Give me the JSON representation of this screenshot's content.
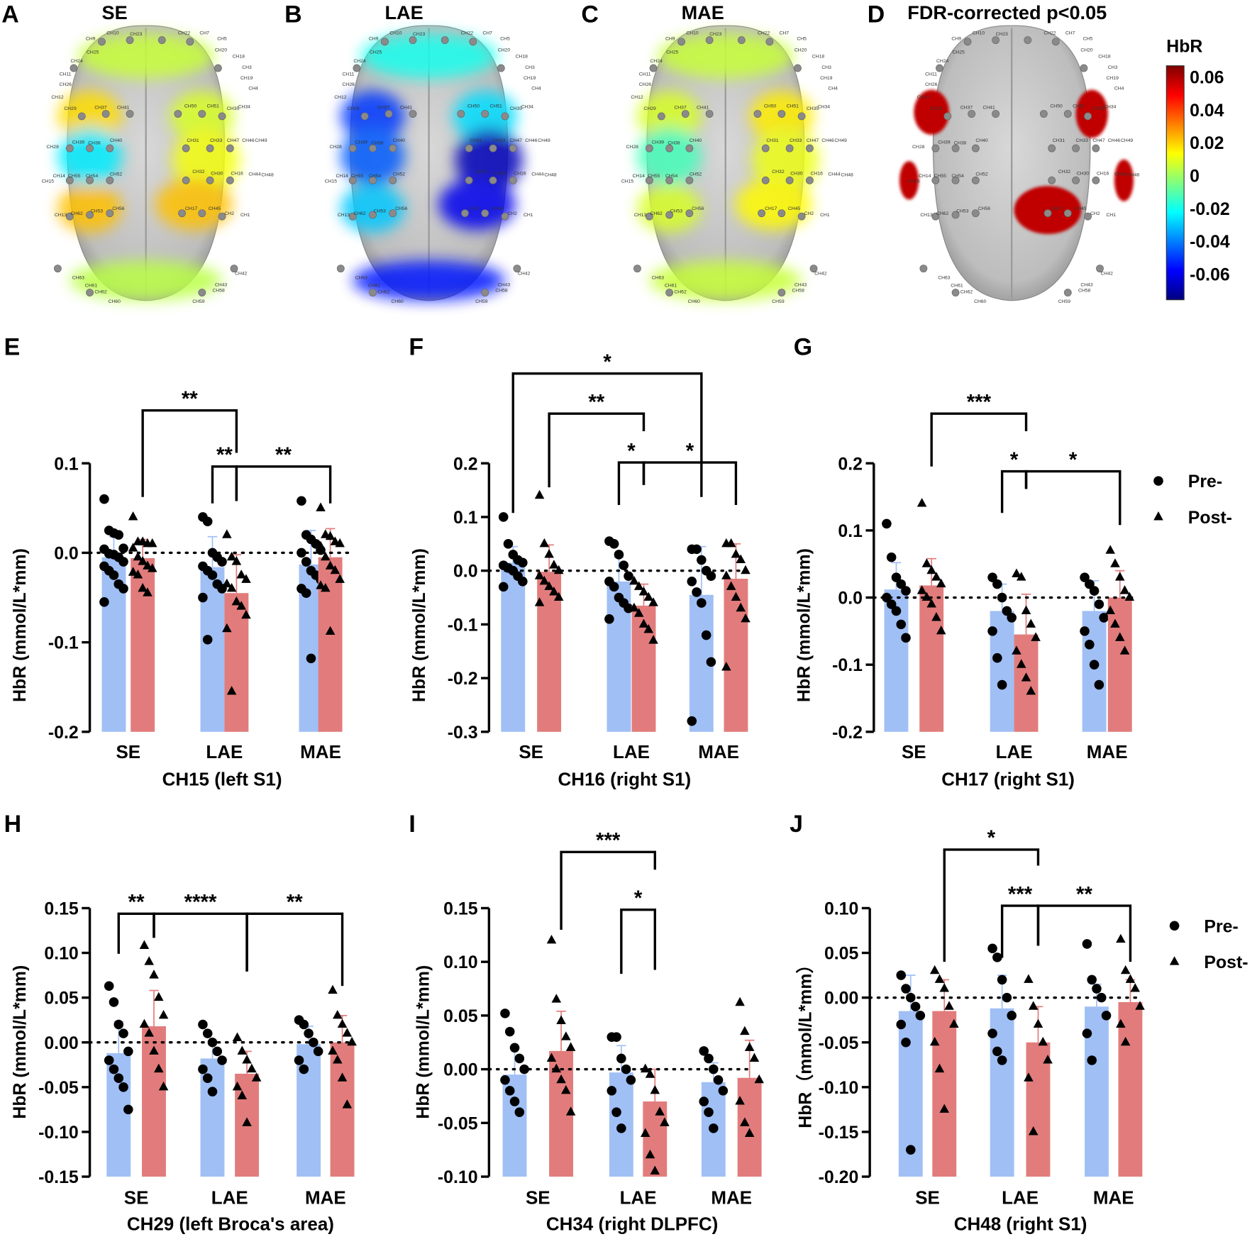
{
  "brains": [
    {
      "letter": "A",
      "title": "SE",
      "blobs": {
        "front": 0.01,
        "lf": 0.022,
        "lm": -0.02,
        "lr": 0.026,
        "rf": 0.012,
        "rm": 0.016,
        "rr": 0.026,
        "occ": 0.008
      }
    },
    {
      "letter": "B",
      "title": "LAE",
      "blobs": {
        "front": -0.015,
        "lf": -0.045,
        "lm": -0.04,
        "lr": -0.025,
        "rf": -0.022,
        "rm": -0.062,
        "rr": -0.055,
        "occ": -0.05
      }
    },
    {
      "letter": "C",
      "title": "MAE",
      "blobs": {
        "front": 0.01,
        "lf": 0.012,
        "lm": -0.008,
        "lr": 0.012,
        "rf": 0.02,
        "rm": 0.015,
        "rr": 0.018,
        "occ": 0.01
      }
    },
    {
      "letter": "D",
      "title": "FDR-corrected p<0.05",
      "significant": [
        "CH29",
        "CH35",
        "CH15",
        "CH48",
        "CH17"
      ]
    }
  ],
  "channels": [
    "CH9",
    "CH10",
    "CH23",
    "CH22",
    "CH7",
    "CH5",
    "CH20",
    "CH18",
    "CH3",
    "CH19",
    "CH4",
    "CH25",
    "CH24",
    "CH11",
    "CH26",
    "CH12",
    "CH29",
    "CH37",
    "CH41",
    "CH50",
    "CH51",
    "CH35",
    "CH34",
    "CH28",
    "CH39",
    "CH38",
    "CH40",
    "CH31",
    "CH33",
    "CH47",
    "CH46",
    "CH49",
    "CH14",
    "CH15",
    "CH55",
    "CH54",
    "CH52",
    "CH32",
    "CH30",
    "CH16",
    "CH44",
    "CH48",
    "CH13",
    "CH62",
    "CH53",
    "CH56",
    "CH17",
    "CH45",
    "CH2",
    "CH1",
    "CH63",
    "CH61",
    "CH62",
    "CH60",
    "CH59",
    "CH58",
    "CH43",
    "CH42"
  ],
  "colorbar": {
    "title": "HbR",
    "ticks": [
      "0.06",
      "0.04",
      "0.02",
      "0",
      "-0.02",
      "-0.04",
      "-0.06"
    ],
    "range": [
      -0.07,
      0.07
    ]
  },
  "legend": {
    "pre": "Pre-",
    "post": "Post-"
  },
  "colors": {
    "pre": "#a0bff5",
    "post": "#e27c7c",
    "pre_err": "#a0bff5",
    "post_err": "#e27c7c"
  },
  "chart_data": [
    {
      "type": "bar",
      "letter": "E",
      "xlabel": "CH15 (left S1)",
      "ylabel": "HbR (mmol/L*mm)",
      "ylim": [
        -0.2,
        0.1
      ],
      "ticks": [
        "0.1",
        "0.0",
        "-0.1",
        "-0.2"
      ],
      "tickvals": [
        0.1,
        0,
        -0.1,
        -0.2
      ],
      "categories": [
        "SE",
        "LAE",
        "MAE"
      ],
      "series": [
        {
          "name": "Pre-",
          "means": [
            -0.005,
            -0.016,
            -0.013
          ],
          "sd": [
            0.023,
            0.034,
            0.038
          ],
          "points": [
            [
              0.06,
              0.025,
              0.022,
              0.02,
              0.005,
              0.004,
              -0.001,
              -0.002,
              -0.005,
              -0.01,
              -0.015,
              -0.02,
              -0.025,
              -0.035,
              -0.04,
              -0.055
            ],
            [
              0.04,
              0.035,
              0,
              -0.005,
              -0.01,
              -0.015,
              -0.02,
              -0.025,
              -0.035,
              -0.04,
              -0.05,
              -0.097
            ],
            [
              0.058,
              0.02,
              0.015,
              0.01,
              0.003,
              0,
              -0.01,
              -0.02,
              -0.025,
              -0.03,
              -0.04,
              -0.045,
              -0.118
            ]
          ]
        },
        {
          "name": "Post-",
          "means": [
            -0.006,
            -0.045,
            -0.005
          ],
          "sd": [
            0.021,
            0.043,
            0.032
          ],
          "points": [
            [
              0.04,
              0.012,
              0.012,
              0.01,
              0.01,
              0.005,
              -0.005,
              -0.01,
              -0.015,
              -0.018,
              -0.022,
              -0.025,
              -0.04,
              -0.045
            ],
            [
              0.02,
              -0.005,
              -0.01,
              -0.025,
              -0.03,
              -0.035,
              -0.04,
              -0.055,
              -0.06,
              -0.07,
              -0.085,
              -0.155
            ],
            [
              0.05,
              0.02,
              0.018,
              0.012,
              0.01,
              0.007,
              -0.005,
              -0.015,
              -0.02,
              -0.03,
              -0.037,
              -0.04,
              -0.088
            ]
          ]
        }
      ],
      "comparisons": [
        {
          "a": 1,
          "b": 3,
          "label": "**"
        },
        {
          "a": 2,
          "b": 3,
          "label": "**"
        },
        {
          "a": 3,
          "b": 5,
          "label": "**"
        }
      ]
    },
    {
      "type": "bar",
      "letter": "F",
      "xlabel": "CH16 (right S1)",
      "ylabel": "HbR (mmol/L*mm)",
      "ylim": [
        -0.3,
        0.2
      ],
      "ticks": [
        "0.2",
        "0.1",
        "0.0",
        "-0.1",
        "-0.2",
        "-0.3"
      ],
      "tickvals": [
        0.2,
        0.1,
        0,
        -0.1,
        -0.2,
        -0.3
      ],
      "categories": [
        "SE",
        "LAE",
        "MAE"
      ],
      "series": [
        {
          "name": "Pre-",
          "means": [
            0.015,
            -0.02,
            -0.045
          ],
          "sd": [
            0.03,
            0.045,
            0.09
          ],
          "points": [
            [
              0.1,
              0.05,
              0.03,
              0.02,
              0.015,
              0.01,
              0.005,
              0,
              -0.01,
              -0.02,
              -0.03
            ],
            [
              0.055,
              0.05,
              0.03,
              0.01,
              -0.01,
              -0.02,
              -0.03,
              -0.05,
              -0.06,
              -0.07,
              -0.09
            ],
            [
              0.04,
              0.04,
              0.02,
              0,
              -0.01,
              -0.02,
              -0.04,
              -0.06,
              -0.12,
              -0.17,
              -0.28
            ]
          ]
        },
        {
          "name": "Post-",
          "means": [
            -0.002,
            -0.065,
            -0.015
          ],
          "sd": [
            0.05,
            0.04,
            0.065
          ],
          "points": [
            [
              0.14,
              0.05,
              0.03,
              0.01,
              0,
              -0.01,
              -0.02,
              -0.03,
              -0.04,
              -0.05,
              -0.06
            ],
            [
              -0.02,
              -0.03,
              -0.04,
              -0.05,
              -0.06,
              -0.07,
              -0.08,
              -0.1,
              -0.11,
              -0.13
            ],
            [
              0.05,
              0.05,
              0.03,
              0.02,
              0,
              -0.01,
              -0.03,
              -0.05,
              -0.07,
              -0.09,
              -0.18
            ]
          ]
        }
      ],
      "comparisons": [
        {
          "a": 0,
          "b": 4,
          "label": "*"
        },
        {
          "a": 1,
          "b": 3,
          "label": "**"
        },
        {
          "a": 2,
          "b": 3,
          "label": "*"
        },
        {
          "a": 3,
          "b": 5,
          "label": "*"
        }
      ]
    },
    {
      "type": "bar",
      "letter": "G",
      "xlabel": "CH17 (right S1)",
      "ylabel": "HbR (mmol/L*mm)",
      "ylim": [
        -0.2,
        0.2
      ],
      "ticks": [
        "0.2",
        "0.1",
        "0.0",
        "-0.1",
        "-0.2"
      ],
      "tickvals": [
        0.2,
        0.1,
        0,
        -0.1,
        -0.2
      ],
      "categories": [
        "SE",
        "LAE",
        "MAE"
      ],
      "series": [
        {
          "name": "Pre-",
          "means": [
            0.012,
            -0.02,
            -0.02
          ],
          "sd": [
            0.04,
            0.04,
            0.045
          ],
          "points": [
            [
              0.11,
              0.06,
              0.03,
              0.02,
              0.01,
              0,
              -0.01,
              -0.02,
              -0.04,
              -0.06
            ],
            [
              0.03,
              0.02,
              0,
              -0.02,
              -0.03,
              -0.05,
              -0.09,
              -0.13
            ],
            [
              0.03,
              0.02,
              0.01,
              -0.01,
              -0.03,
              -0.05,
              -0.07,
              -0.1,
              -0.13
            ]
          ]
        },
        {
          "name": "Post-",
          "means": [
            0.018,
            -0.055,
            0
          ],
          "sd": [
            0.04,
            0.06,
            0.04
          ],
          "points": [
            [
              0.14,
              0.05,
              0.04,
              0.03,
              0.02,
              0.01,
              0,
              -0.01,
              -0.03,
              -0.05
            ],
            [
              0.035,
              0.03,
              -0.02,
              -0.04,
              -0.06,
              -0.08,
              -0.1,
              -0.12,
              -0.14
            ],
            [
              0.07,
              0.05,
              0.03,
              0.01,
              0,
              -0.02,
              -0.04,
              -0.06,
              -0.08
            ]
          ]
        }
      ],
      "comparisons": [
        {
          "a": 1,
          "b": 3,
          "label": "***"
        },
        {
          "a": 2,
          "b": 3,
          "label": "*"
        },
        {
          "a": 3,
          "b": 5,
          "label": "*"
        }
      ]
    },
    {
      "type": "bar",
      "letter": "H",
      "xlabel": "CH29 (left Broca's area)",
      "ylabel": "HbR (mmol/L*mm)",
      "ylim": [
        -0.15,
        0.15
      ],
      "ticks": [
        "0.15",
        "0.10",
        "0.05",
        "0.00",
        "-0.05",
        "-0.10",
        "-0.15"
      ],
      "tickvals": [
        0.15,
        0.1,
        0.05,
        0,
        -0.05,
        -0.1,
        -0.15
      ],
      "categories": [
        "SE",
        "LAE",
        "MAE"
      ],
      "series": [
        {
          "name": "Pre-",
          "means": [
            -0.012,
            -0.018,
            -0.002
          ],
          "sd": [
            0.035,
            0.02,
            0.02
          ],
          "points": [
            [
              0.063,
              0.045,
              0.02,
              0.01,
              -0.01,
              -0.02,
              -0.03,
              -0.04,
              -0.05,
              -0.075
            ],
            [
              0.02,
              0.01,
              0,
              -0.01,
              -0.02,
              -0.03,
              -0.04,
              -0.055
            ],
            [
              0.025,
              0.02,
              0.01,
              0,
              -0.01,
              -0.02,
              -0.03
            ]
          ]
        },
        {
          "name": "Post-",
          "means": [
            0.018,
            -0.035,
            0
          ],
          "sd": [
            0.04,
            0.025,
            0.03
          ],
          "points": [
            [
              0.108,
              0.09,
              0.075,
              0.05,
              0.03,
              0.02,
              0.01,
              -0.01,
              -0.03,
              -0.05
            ],
            [
              0.005,
              -0.01,
              -0.02,
              -0.03,
              -0.04,
              -0.05,
              -0.06,
              -0.09
            ],
            [
              0.058,
              0.03,
              0.02,
              0.01,
              0,
              -0.01,
              -0.02,
              -0.04,
              -0.07
            ]
          ]
        }
      ],
      "comparisons": [
        {
          "a": 0,
          "b": 1,
          "label": "**"
        },
        {
          "a": 1,
          "b": 3,
          "label": "****"
        },
        {
          "a": 3,
          "b": 5,
          "label": "**"
        }
      ]
    },
    {
      "type": "bar",
      "letter": "I",
      "xlabel": "CH34 (right DLPFC)",
      "ylabel": "HbR (mmol/L*mm)",
      "ylim": [
        -0.1,
        0.15
      ],
      "ticks": [
        "0.15",
        "0.10",
        "0.05",
        "0.00",
        "-0.05",
        "-0.10"
      ],
      "tickvals": [
        0.15,
        0.1,
        0.05,
        0,
        -0.05,
        -0.1
      ],
      "categories": [
        "SE",
        "LAE",
        "MAE"
      ],
      "series": [
        {
          "name": "Pre-",
          "means": [
            -0.005,
            -0.003,
            -0.012
          ],
          "sd": [
            0.025,
            0.025,
            0.018
          ],
          "points": [
            [
              0.052,
              0.035,
              0.02,
              0.01,
              0,
              -0.01,
              -0.02,
              -0.03,
              -0.04
            ],
            [
              0.03,
              0.03,
              0.01,
              0,
              -0.01,
              -0.02,
              -0.04,
              -0.055
            ],
            [
              0.017,
              0.01,
              0,
              -0.01,
              -0.02,
              -0.03,
              -0.04,
              -0.055
            ]
          ]
        },
        {
          "name": "Post-",
          "means": [
            0.017,
            -0.03,
            -0.008
          ],
          "sd": [
            0.037,
            0.03,
            0.035
          ],
          "points": [
            [
              0.12,
              0.065,
              0.045,
              0.03,
              0.02,
              0.01,
              0,
              -0.01,
              -0.02,
              -0.04
            ],
            [
              0,
              -0.005,
              -0.02,
              -0.04,
              -0.05,
              -0.06,
              -0.08,
              -0.095
            ],
            [
              0.062,
              0.035,
              0.02,
              0.01,
              -0.01,
              -0.03,
              -0.05,
              -0.06
            ]
          ]
        }
      ],
      "comparisons": [
        {
          "a": 1,
          "b": 3,
          "label": "***"
        },
        {
          "a": 2,
          "b": 3,
          "label": "*"
        }
      ]
    },
    {
      "type": "bar",
      "letter": "J",
      "xlabel": "CH48 (right S1)",
      "ylabel": "HbR（mmol/L*mm）",
      "ylim": [
        -0.2,
        0.1
      ],
      "ticks": [
        "0.10",
        "0.05",
        "0.00",
        "-0.05",
        "-0.10",
        "-0.15",
        "-0.20"
      ],
      "tickvals": [
        0.1,
        0.05,
        0,
        -0.05,
        -0.1,
        -0.15,
        -0.2
      ],
      "categories": [
        "SE",
        "LAE",
        "MAE"
      ],
      "series": [
        {
          "name": "Pre-",
          "means": [
            -0.015,
            -0.012,
            -0.01
          ],
          "sd": [
            0.04,
            0.037,
            0.025
          ],
          "points": [
            [
              0.025,
              0.01,
              0,
              -0.01,
              -0.02,
              -0.03,
              -0.05,
              -0.17
            ],
            [
              0.055,
              0.045,
              0.02,
              0,
              -0.02,
              -0.04,
              -0.06,
              -0.07
            ],
            [
              0.06,
              0.02,
              0.01,
              0,
              -0.02,
              -0.04,
              -0.07
            ]
          ]
        },
        {
          "name": "Post-",
          "means": [
            -0.015,
            -0.05,
            -0.005
          ],
          "sd": [
            0.035,
            0.04,
            0.025
          ],
          "points": [
            [
              0.03,
              0.02,
              0.01,
              -0.01,
              -0.03,
              -0.05,
              -0.08,
              -0.125
            ],
            [
              0.02,
              -0.01,
              -0.03,
              -0.05,
              -0.07,
              -0.09,
              -0.15
            ],
            [
              0.065,
              0.03,
              0.02,
              0.01,
              -0.01,
              -0.03,
              -0.05
            ]
          ]
        }
      ],
      "comparisons": [
        {
          "a": 1,
          "b": 3,
          "label": "*"
        },
        {
          "a": 2,
          "b": 3,
          "label": "***"
        },
        {
          "a": 3,
          "b": 5,
          "label": "**"
        }
      ]
    }
  ]
}
